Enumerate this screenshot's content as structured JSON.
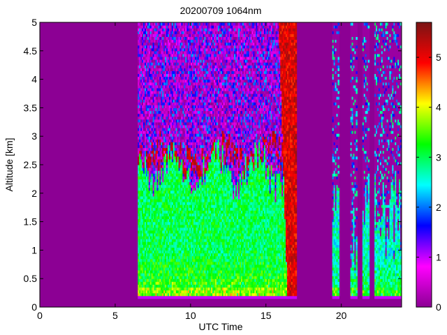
{
  "chart_data": {
    "type": "heatmap",
    "title": "20200709 1064nm",
    "xlabel": "UTC Time",
    "ylabel": "Altitude [km]",
    "xlim": [
      0,
      24
    ],
    "ylim": [
      0,
      5
    ],
    "xticks": [
      "0",
      "5",
      "10",
      "15",
      "20"
    ],
    "yticks": [
      "0",
      "0.5",
      "1",
      "1.5",
      "2",
      "2.5",
      "3",
      "3.5",
      "4",
      "4.5",
      "5"
    ],
    "colorbar": {
      "range": [
        0,
        5.7
      ],
      "ticks": [
        "0",
        "1",
        "2",
        "3",
        "4",
        "5"
      ],
      "colormap": [
        "#8c0094",
        "#ff00ff",
        "#0000ff",
        "#00ffff",
        "#00ff00",
        "#ffff00",
        "#ff0000",
        "#7a1414"
      ]
    },
    "background_color": "#8c0094",
    "data_coverage": [
      {
        "start": 6.5,
        "end": 17.0
      },
      {
        "start": 19.4,
        "end": 19.8
      },
      {
        "start": 20.6,
        "end": 21.0
      },
      {
        "start": 21.4,
        "end": 21.8
      },
      {
        "start": 22.2,
        "end": 24.0
      }
    ],
    "features": [
      {
        "type": "aerosol_layer",
        "time_start": 6.5,
        "time_end": 17.0,
        "altitude_base": 0.2,
        "altitude_top": 2.5,
        "value": 3
      },
      {
        "type": "cloud_top",
        "time_start": 7.0,
        "time_end": 16.5,
        "altitude": 2.6,
        "value": 5.5
      },
      {
        "type": "precipitation_shaft",
        "time_start": 15.8,
        "time_end": 17.0,
        "altitude_base": 0.2,
        "altitude_top": 5.0,
        "value": 5.5
      },
      {
        "type": "surface_layer",
        "time_start": 6.5,
        "time_end": 24.0,
        "altitude": 0.2,
        "value": 1
      }
    ]
  }
}
